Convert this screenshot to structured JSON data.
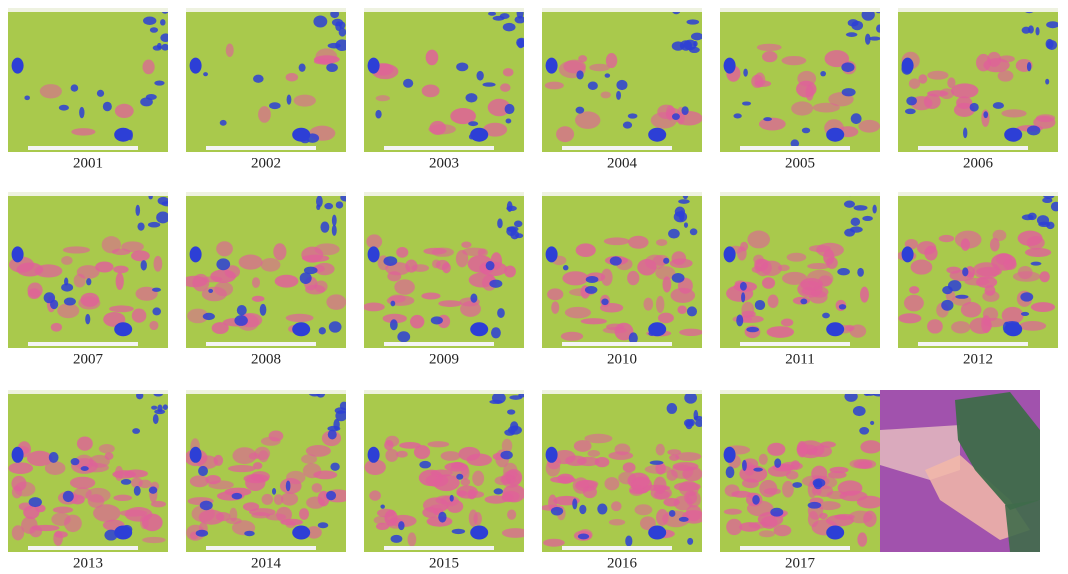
{
  "panels": [
    {
      "label": "2001"
    },
    {
      "label": "2002"
    },
    {
      "label": "2003"
    },
    {
      "label": "2004"
    },
    {
      "label": "2005"
    },
    {
      "label": "2006"
    },
    {
      "label": "2007"
    },
    {
      "label": "2008"
    },
    {
      "label": "2009"
    },
    {
      "label": "2010"
    },
    {
      "label": "2011"
    },
    {
      "label": "2012"
    },
    {
      "label": "2013"
    },
    {
      "label": "2014"
    },
    {
      "label": "2015"
    },
    {
      "label": "2016"
    },
    {
      "label": "2017"
    }
  ]
}
